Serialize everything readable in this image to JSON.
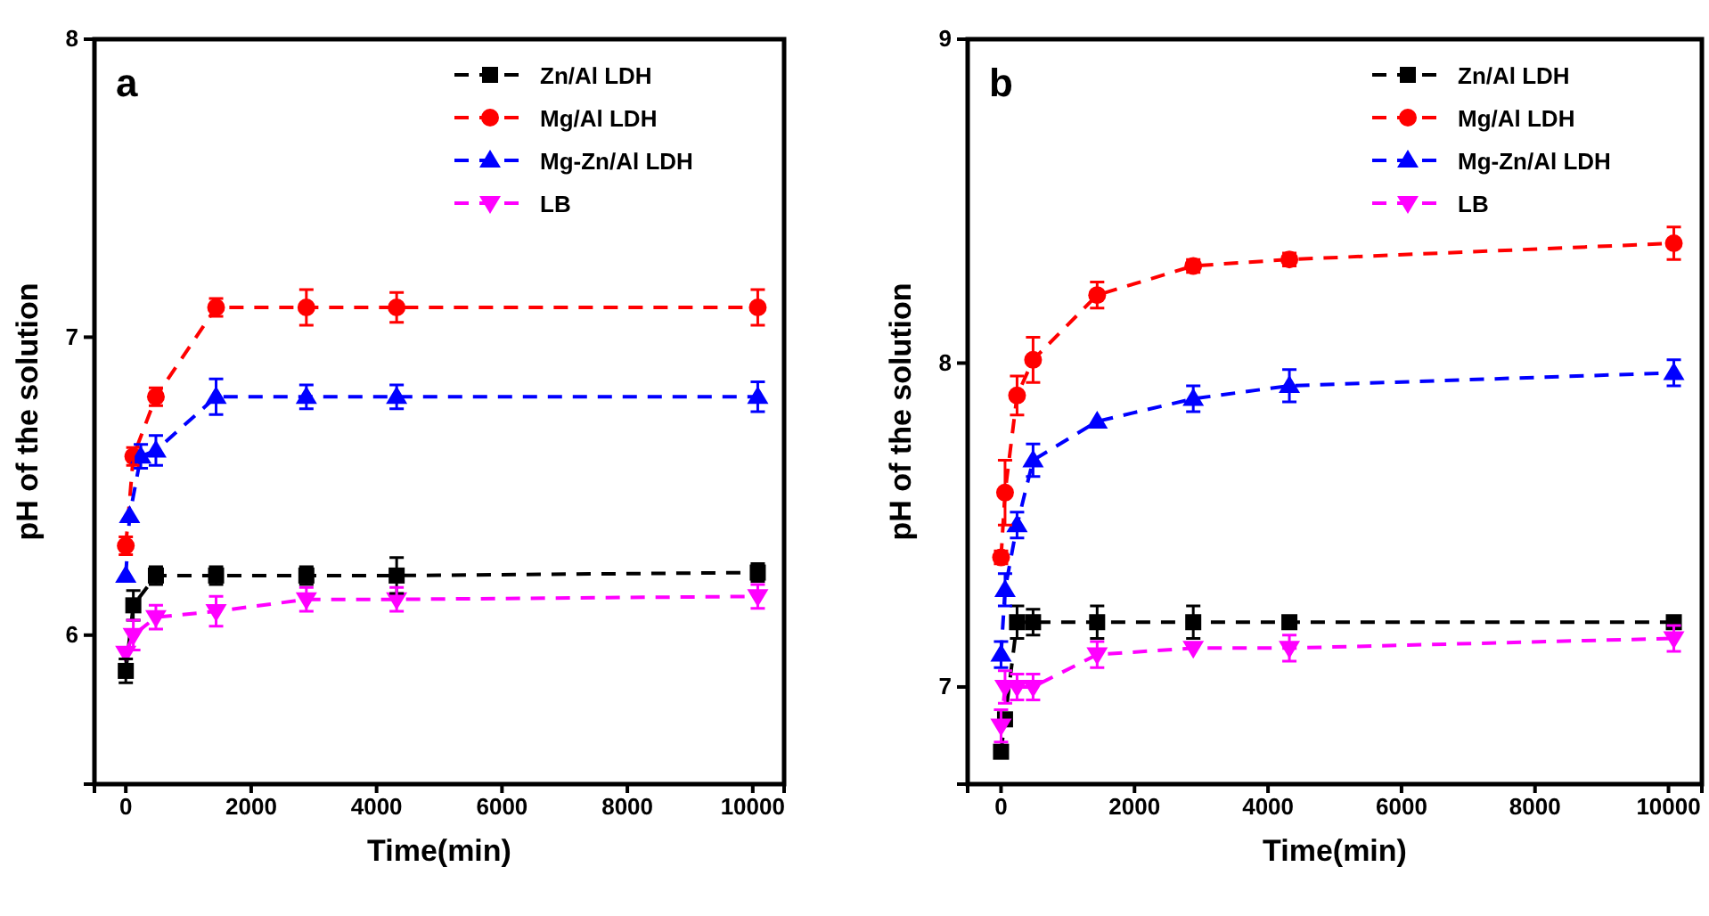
{
  "chart_data": [
    {
      "type": "line",
      "annotations": [
        "a"
      ],
      "xlabel": "Time(min)",
      "ylabel": "pH of the solution",
      "xlim": [
        -500,
        10500
      ],
      "xticks": [
        0,
        2000,
        4000,
        6000,
        8000,
        10000
      ],
      "ylim": [
        5.5,
        8
      ],
      "yticks": [
        6,
        7,
        8
      ],
      "grid": false,
      "legend": "top right",
      "line_style": "dashed",
      "series": [
        {
          "name": "Zn/Al LDH",
          "color": "#000000",
          "marker": "square",
          "x": [
            0,
            120,
            480,
            1440,
            2880,
            4320,
            10080
          ],
          "values": [
            5.88,
            6.1,
            6.2,
            6.2,
            6.2,
            6.2,
            6.21
          ],
          "errors": [
            0.04,
            0.05,
            0.03,
            0.03,
            0.03,
            0.06,
            0.03
          ]
        },
        {
          "name": "Mg/Al LDH",
          "color": "#ff0000",
          "marker": "circle",
          "x": [
            0,
            120,
            480,
            1440,
            2880,
            4320,
            10080
          ],
          "values": [
            6.3,
            6.6,
            6.8,
            7.1,
            7.1,
            7.1,
            7.1
          ],
          "errors": [
            0.03,
            0.03,
            0.03,
            0.03,
            0.06,
            0.05,
            0.06
          ]
        },
        {
          "name": "Mg-Zn/Al LDH",
          "color": "#0000ff",
          "marker": "triangle",
          "x": [
            0,
            60,
            240,
            480,
            1440,
            2880,
            4320,
            10080
          ],
          "values": [
            6.2,
            6.4,
            6.6,
            6.62,
            6.8,
            6.8,
            6.8,
            6.8
          ],
          "errors": [
            null,
            null,
            0.04,
            0.05,
            0.06,
            0.04,
            0.04,
            0.05
          ]
        },
        {
          "name": "LB",
          "color": "#ff00ff",
          "marker": "triangle-down",
          "x": [
            0,
            120,
            480,
            1440,
            2880,
            4320,
            10080
          ],
          "values": [
            5.94,
            6.0,
            6.06,
            6.08,
            6.12,
            6.12,
            6.13
          ],
          "errors": [
            null,
            0.05,
            0.04,
            0.05,
            0.04,
            0.04,
            0.04
          ]
        }
      ]
    },
    {
      "type": "line",
      "annotations": [
        "b"
      ],
      "xlabel": "Time(min)",
      "ylabel": "pH of the solution",
      "xlim": [
        -500,
        10500
      ],
      "xticks": [
        0,
        2000,
        4000,
        6000,
        8000,
        10000
      ],
      "ylim": [
        6.7,
        9
      ],
      "yticks": [
        7,
        8,
        9
      ],
      "grid": false,
      "legend": "top right",
      "line_style": "dashed",
      "series": [
        {
          "name": "Zn/Al LDH",
          "color": "#000000",
          "marker": "square",
          "x": [
            0,
            60,
            240,
            480,
            1440,
            2880,
            4320,
            10080
          ],
          "values": [
            6.8,
            6.9,
            7.2,
            7.2,
            7.2,
            7.2,
            7.2,
            7.2
          ],
          "errors": [
            null,
            null,
            0.05,
            0.04,
            0.05,
            0.05,
            null,
            null
          ]
        },
        {
          "name": "Mg/Al LDH",
          "color": "#ff0000",
          "marker": "circle",
          "x": [
            0,
            60,
            240,
            480,
            1440,
            2880,
            4320,
            10080
          ],
          "values": [
            7.4,
            7.6,
            7.9,
            8.01,
            8.21,
            8.3,
            8.32,
            8.37
          ],
          "errors": [
            0.02,
            0.1,
            0.06,
            0.07,
            0.04,
            0.02,
            0.02,
            0.05
          ]
        },
        {
          "name": "Mg-Zn/Al LDH",
          "color": "#0000ff",
          "marker": "triangle",
          "x": [
            0,
            60,
            240,
            480,
            1440,
            2880,
            4320,
            10080
          ],
          "values": [
            7.1,
            7.3,
            7.5,
            7.7,
            7.82,
            7.89,
            7.93,
            7.97
          ],
          "errors": [
            0.04,
            0.05,
            0.04,
            0.05,
            null,
            0.04,
            0.05,
            0.04
          ]
        },
        {
          "name": "LB",
          "color": "#ff00ff",
          "marker": "triangle-down",
          "x": [
            0,
            60,
            240,
            480,
            1440,
            2880,
            4320,
            10080
          ],
          "values": [
            6.88,
            7.0,
            7.0,
            7.0,
            7.1,
            7.12,
            7.12,
            7.15
          ],
          "errors": [
            0.05,
            0.05,
            0.04,
            0.04,
            0.04,
            null,
            0.04,
            0.04
          ]
        }
      ]
    }
  ]
}
